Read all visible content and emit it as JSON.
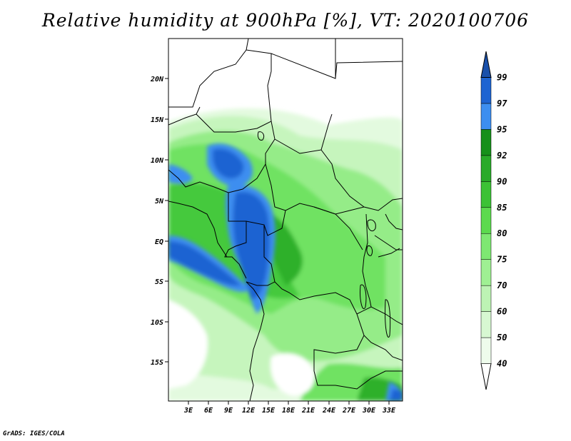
{
  "title": "Relative humidity at 900hPa [%], VT: 2020100706",
  "credit": "GrADS: IGES/COLA",
  "map": {
    "lat_labels": [
      "20N",
      "15N",
      "10N",
      "5N",
      "EQ",
      "5S",
      "10S",
      "15S"
    ],
    "lon_labels": [
      "3E",
      "6E",
      "9E",
      "12E",
      "15E",
      "18E",
      "21E",
      "24E",
      "27E",
      "30E",
      "33E"
    ]
  },
  "colorbar": {
    "levels": [
      "40",
      "50",
      "60",
      "70",
      "75",
      "80",
      "85",
      "90",
      "92",
      "95",
      "97",
      "99"
    ],
    "colors": [
      "#ffffff",
      "#eefcec",
      "#d7f8d2",
      "#bdf3b4",
      "#9ff093",
      "#7ee872",
      "#5cda4e",
      "#3cc235",
      "#29aa29",
      "#16901a",
      "#3d8ef0",
      "#1e64d2",
      "#1a50aa"
    ]
  }
}
